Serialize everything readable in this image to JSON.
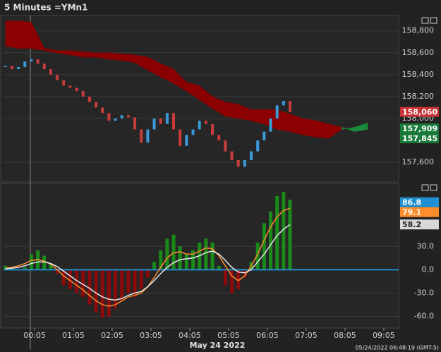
{
  "title": "5 Minutes =YMn1",
  "timestamp": "05/24/2022 06:48:19  (GMT-5)",
  "date_label": "May 24 2022",
  "xlim": [
    -43,
    568
  ],
  "xticks": [
    {
      "value": 5,
      "label": "00:05"
    },
    {
      "value": 65,
      "label": "01:05"
    },
    {
      "value": 125,
      "label": "02:05"
    },
    {
      "value": 185,
      "label": "03:05"
    },
    {
      "value": 245,
      "label": "04:05"
    },
    {
      "value": 305,
      "label": "05:05"
    },
    {
      "value": 365,
      "label": "06:05"
    },
    {
      "value": 425,
      "label": "07:05"
    },
    {
      "value": 485,
      "label": "08:05"
    },
    {
      "value": 545,
      "label": "09:05"
    }
  ],
  "chart_data": [
    {
      "type": "candlestick",
      "x": [
        -40,
        -30,
        -20,
        -10,
        0,
        10,
        20,
        30,
        40,
        50,
        60,
        70,
        80,
        90,
        100,
        110,
        120,
        130,
        140,
        150,
        160,
        170,
        180,
        190,
        200,
        210,
        220,
        230,
        240,
        250,
        260,
        270,
        280,
        290,
        300,
        310,
        320,
        330,
        340,
        350,
        360,
        370,
        380,
        390,
        400
      ],
      "open": [
        158470,
        158480,
        158450,
        158470,
        158520,
        158540,
        158500,
        158450,
        158400,
        158350,
        158300,
        158280,
        158250,
        158200,
        158150,
        158100,
        158050,
        157980,
        158000,
        158030,
        158010,
        157900,
        157780,
        157900,
        158000,
        157950,
        158050,
        157900,
        157750,
        157850,
        157900,
        157980,
        157950,
        157850,
        157800,
        157700,
        157620,
        157560,
        157620,
        157700,
        157800,
        157880,
        158000,
        158120,
        158160
      ],
      "close": [
        158480,
        158450,
        158470,
        158520,
        158540,
        158500,
        158450,
        158400,
        158350,
        158300,
        158280,
        158250,
        158200,
        158150,
        158100,
        158050,
        157980,
        158000,
        158030,
        158010,
        157900,
        157780,
        157900,
        158000,
        157950,
        158050,
        157900,
        157750,
        157850,
        157900,
        157980,
        157950,
        157850,
        157800,
        157700,
        157620,
        157560,
        157620,
        157700,
        157800,
        157880,
        158000,
        158120,
        158160,
        158060
      ],
      "up_color": "#3a9ad9",
      "down_color": "#c83c3c",
      "cloud": {
        "x": [
          -40,
          -20,
          0,
          20,
          40,
          60,
          80,
          100,
          120,
          140,
          160,
          180,
          200,
          220,
          240,
          260,
          280,
          300,
          320,
          340,
          360,
          380,
          400,
          420,
          440,
          460,
          480,
          500,
          520
        ],
        "span_a": [
          158890,
          158890,
          158880,
          158640,
          158620,
          158620,
          158610,
          158600,
          158600,
          158590,
          158580,
          158560,
          158500,
          158450,
          158330,
          158300,
          158200,
          158150,
          158130,
          158080,
          158080,
          158080,
          158040,
          158000,
          157980,
          157950,
          157920,
          157880,
          157900
        ],
        "span_b": [
          158660,
          158640,
          158640,
          158620,
          158600,
          158580,
          158560,
          158560,
          158540,
          158530,
          158510,
          158440,
          158380,
          158320,
          158250,
          158170,
          158090,
          158020,
          158000,
          157980,
          157950,
          157900,
          157880,
          157850,
          157830,
          157820,
          157900,
          157920,
          157960
        ],
        "color_a": "#8b0000",
        "color_b": "#1a8a3a"
      },
      "ylim": [
        157420,
        158940
      ],
      "yticks": [
        {
          "value": 157600,
          "label": "157,600"
        },
        {
          "value": 158000,
          "label": "158,000"
        },
        {
          "value": 158200,
          "label": "158,200"
        },
        {
          "value": 158400,
          "label": "158,400"
        },
        {
          "value": 158600,
          "label": "158,600"
        },
        {
          "value": 158800,
          "label": "158,800"
        }
      ],
      "flags": [
        {
          "value": 158060,
          "label": "158,060",
          "color": "#c83232"
        },
        {
          "value": 157909,
          "label": "157,909",
          "color": "#1a7a3a"
        },
        {
          "value": 157845,
          "label": "157,845",
          "color": "#1a7a3a"
        }
      ]
    },
    {
      "type": "combo",
      "x": [
        -40,
        -30,
        -20,
        -10,
        0,
        10,
        20,
        30,
        40,
        50,
        60,
        70,
        80,
        90,
        100,
        110,
        120,
        130,
        140,
        150,
        160,
        170,
        180,
        190,
        200,
        210,
        220,
        230,
        240,
        250,
        260,
        270,
        280,
        290,
        300,
        310,
        320,
        330,
        340,
        350,
        360,
        370,
        380,
        390,
        400
      ],
      "bars": [
        5,
        2,
        0,
        3,
        20,
        25,
        18,
        8,
        -5,
        -20,
        -25,
        -30,
        -35,
        -45,
        -55,
        -62,
        -60,
        -50,
        -40,
        -30,
        -35,
        -25,
        -10,
        10,
        25,
        40,
        45,
        30,
        20,
        25,
        35,
        40,
        35,
        5,
        -20,
        -30,
        -25,
        -10,
        10,
        35,
        60,
        75,
        95,
        100,
        90
      ],
      "pos_color": "#1a8a1a",
      "neg_color": "#8b0a0a",
      "series": [
        {
          "color": "#ff8c2a",
          "values": [
            2,
            3,
            5,
            8,
            12,
            13,
            11,
            7,
            0,
            -8,
            -14,
            -20,
            -26,
            -33,
            -40,
            -45,
            -47,
            -45,
            -40,
            -35,
            -33,
            -30,
            -22,
            -10,
            3,
            15,
            22,
            23,
            20,
            20,
            24,
            28,
            27,
            18,
            5,
            -8,
            -14,
            -8,
            5,
            20,
            38,
            55,
            68,
            76,
            79.1
          ]
        },
        {
          "color": "#e8e8e8",
          "values": [
            1,
            2,
            3,
            5,
            8,
            10,
            10,
            8,
            4,
            -2,
            -8,
            -14,
            -19,
            -24,
            -30,
            -35,
            -38,
            -39,
            -37,
            -33,
            -30,
            -28,
            -22,
            -14,
            -5,
            3,
            9,
            13,
            14,
            15,
            18,
            22,
            24,
            20,
            12,
            3,
            -3,
            -4,
            0,
            10,
            20,
            32,
            44,
            52,
            58.2
          ]
        }
      ],
      "zero_color": "#1e8fd0",
      "ylim": [
        -75,
        111
      ],
      "yticks": [
        {
          "value": -60,
          "label": "-60.0"
        },
        {
          "value": -30,
          "label": "-30.0"
        },
        {
          "value": 0,
          "label": "0.0"
        },
        {
          "value": 30,
          "label": "30.0"
        }
      ],
      "flags": [
        {
          "value": 86.8,
          "label": "86.8",
          "color": "#1e8fd0"
        },
        {
          "value": 79.1,
          "label": "79.1",
          "color": "#ff8c2a"
        },
        {
          "value": 58.2,
          "label": "58.2",
          "color": "#d8d8d8"
        }
      ]
    }
  ]
}
